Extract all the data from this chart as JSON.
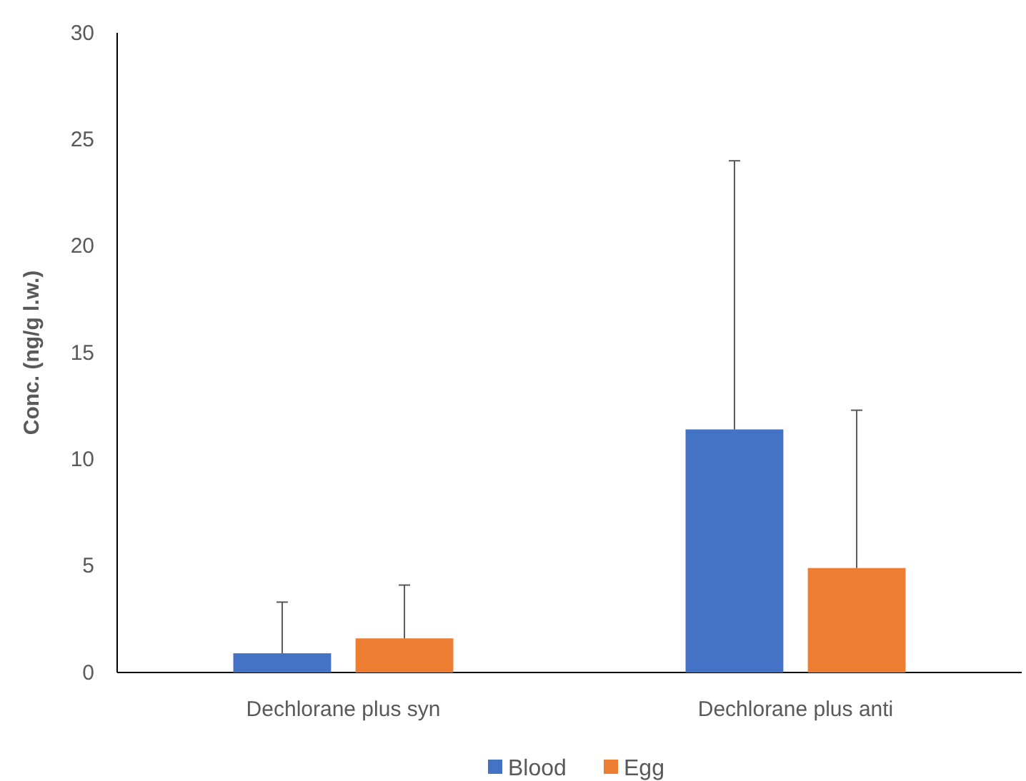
{
  "chart_data": {
    "type": "bar",
    "ylabel": "Conc. (ng/g l.w.)",
    "categories": [
      "Dechlorane plus syn",
      "Dechlorane plus anti"
    ],
    "series": [
      {
        "name": "Blood",
        "color": "#4472c4",
        "values": [
          0.9,
          11.4
        ],
        "errors": [
          [
            0.9,
            3.3
          ],
          [
            11.4,
            24.0
          ]
        ]
      },
      {
        "name": "Egg",
        "color": "#ed7d31",
        "values": [
          1.6,
          4.9
        ],
        "errors": [
          [
            1.6,
            4.1
          ],
          [
            4.9,
            12.3
          ]
        ]
      }
    ],
    "ylim": [
      0,
      30
    ],
    "yticks": [
      0,
      5,
      10,
      15,
      20,
      25,
      30
    ],
    "grid": false,
    "legend": "bottom"
  }
}
